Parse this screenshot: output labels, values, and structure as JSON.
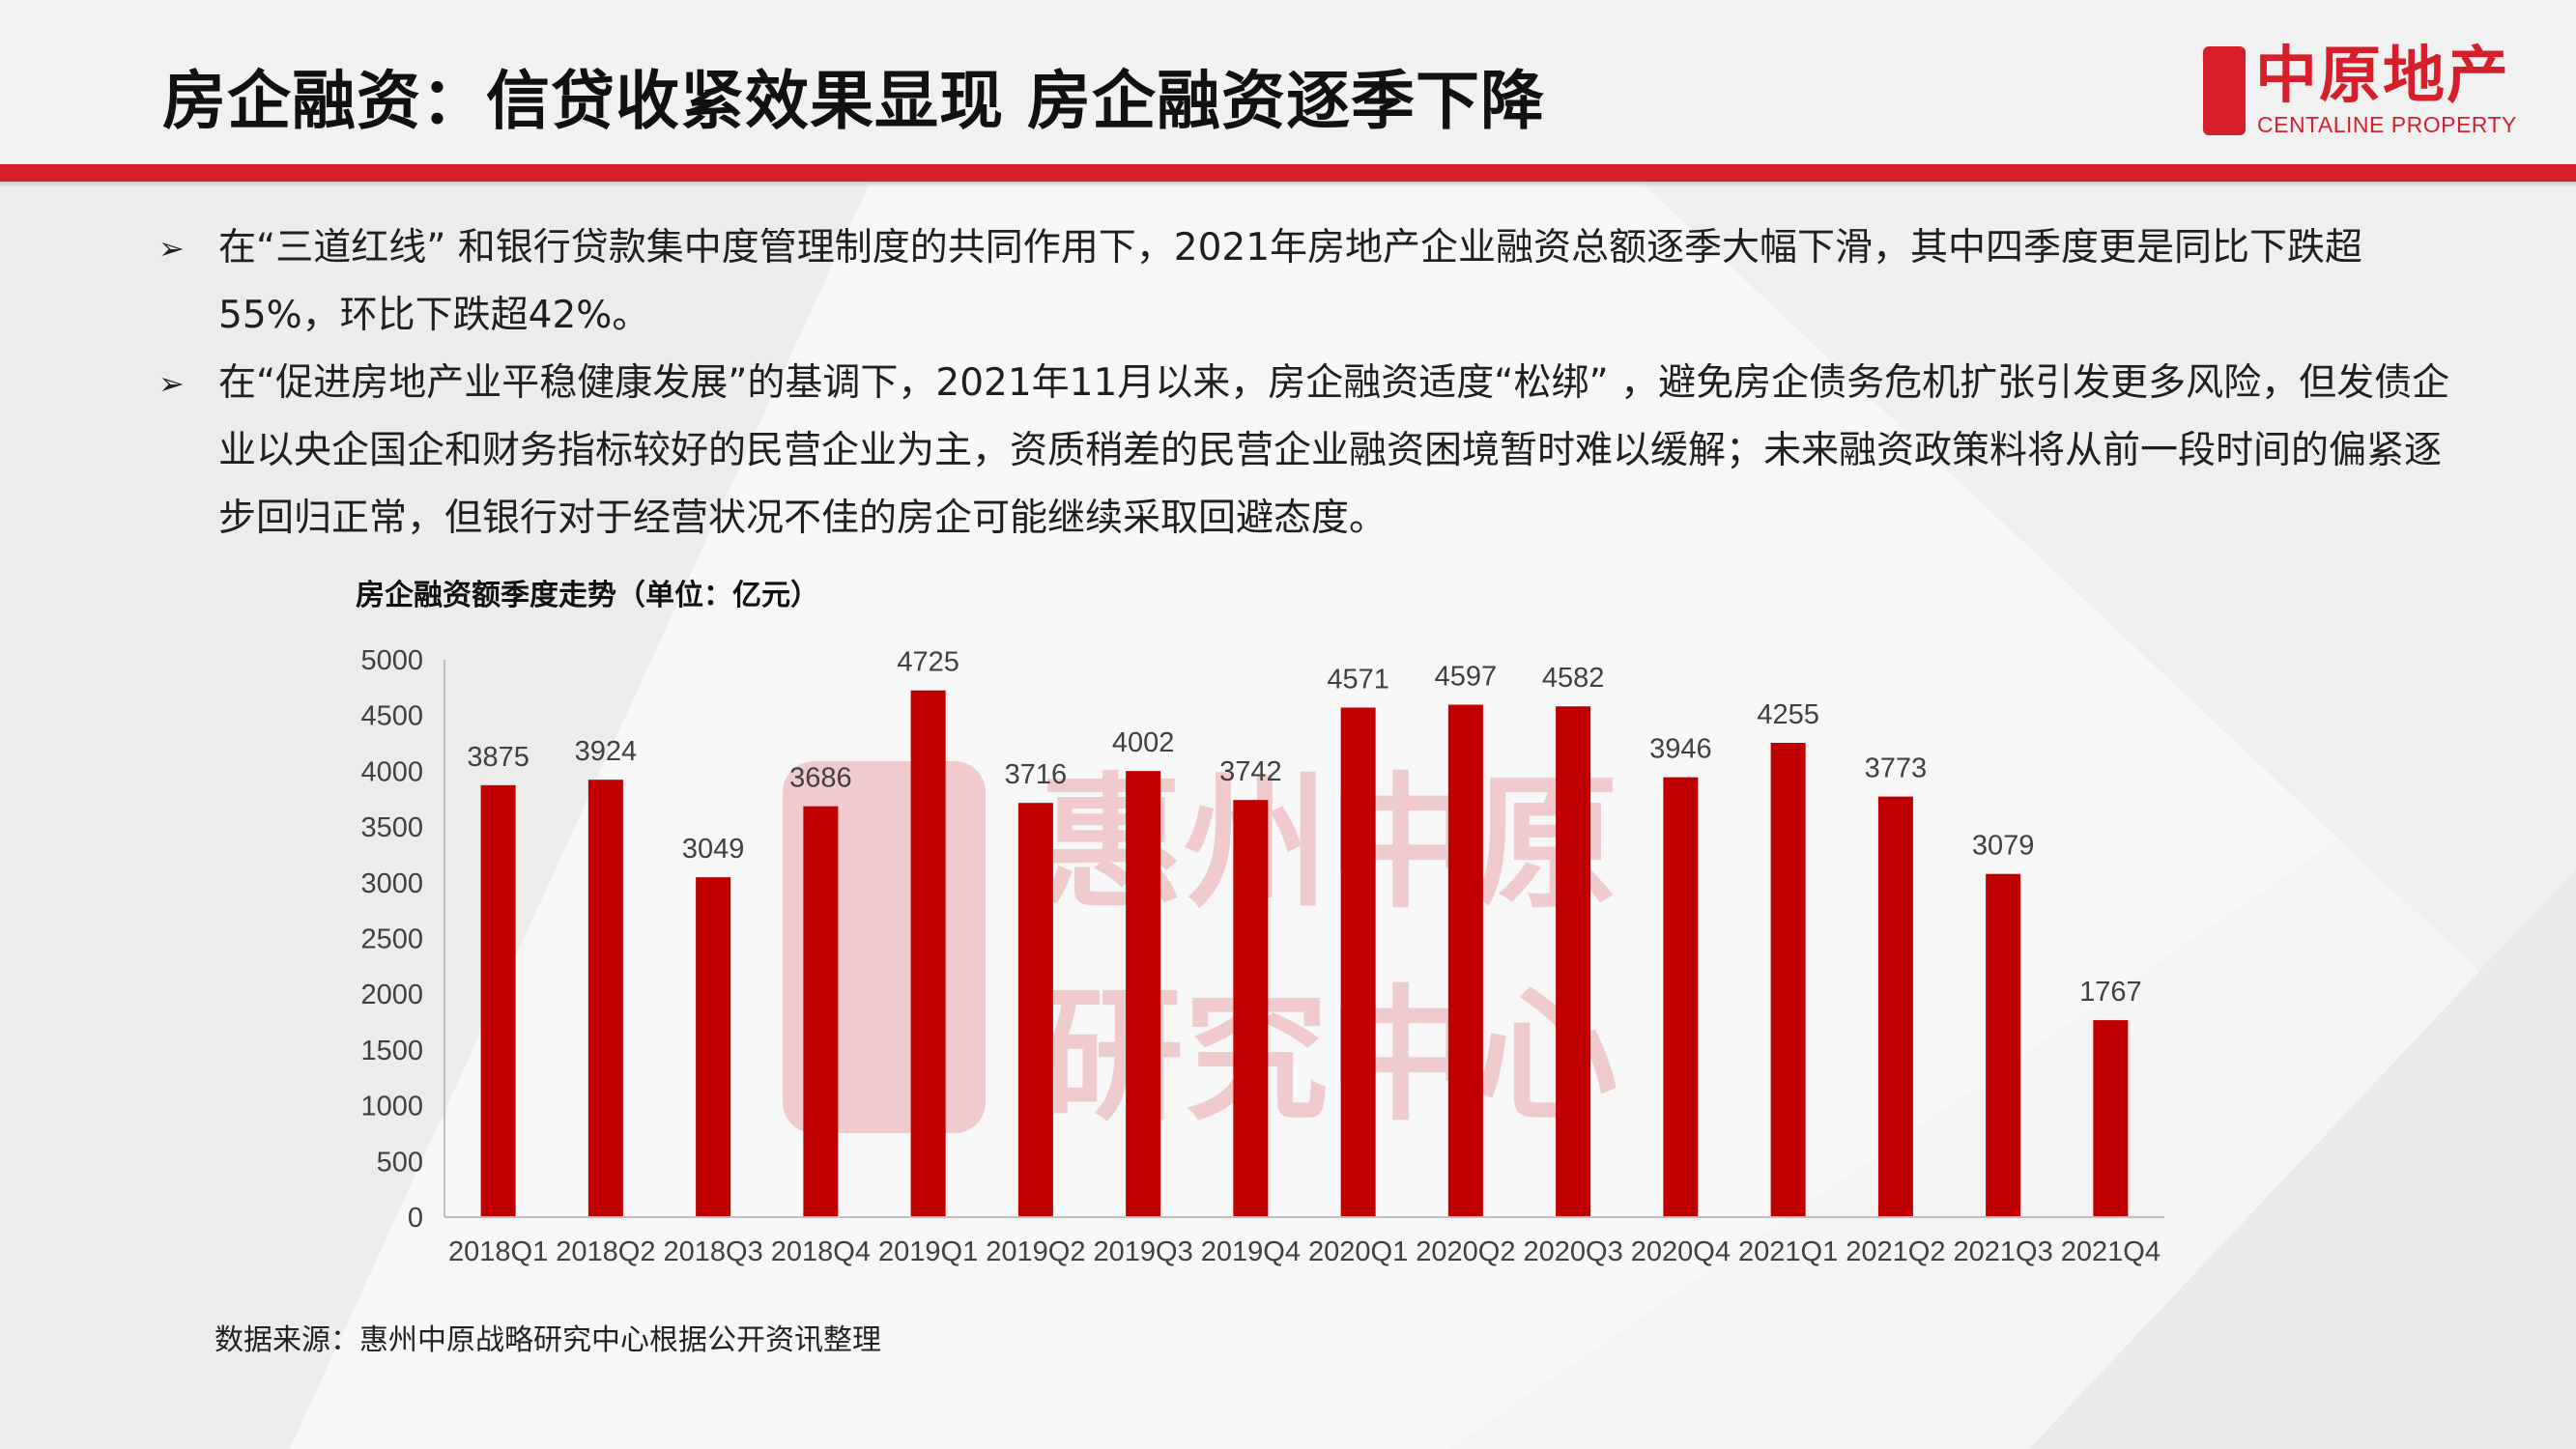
{
  "slide": {
    "title": "房企融资：信贷收紧效果显现  房企融资逐季下降",
    "logo": {
      "cn": "中原地产",
      "en": "CENTALINE PROPERTY",
      "seal_text": "中原"
    },
    "bullets": [
      {
        "marker": "➢",
        "text": "在“三道红线” 和银行贷款集中度管理制度的共同作用下，2021年房地产企业融资总额逐季大幅下滑，其中四季度更是同比下跌超55%，环比下跌超42%。"
      },
      {
        "marker": "➢",
        "text": "在“促进房地产业平稳健康发展”的基调下，2021年11月以来，房企融资适度“松绑” ，避免房企债务危机扩张引发更多风险，但发债企业以央企国企和财务指标较好的民营企业为主，资质稍差的民营企业融资困境暂时难以缓解；未来融资政策料将从前一段时间的偏紧逐步回归正常，但银行对于经营状况不佳的房企可能继续采取回避态度。"
      }
    ],
    "watermark": {
      "line1": "惠州中原",
      "line2": "研究中心"
    },
    "source": "数据来源：惠州中原战略研究中心根据公开资讯整理",
    "accent_color": "#d61f2b",
    "bar_color": "#c00000"
  },
  "chart_data": {
    "type": "bar",
    "title": "房企融资额季度走势（单位：亿元）",
    "xlabel": "",
    "ylabel": "",
    "categories": [
      "2018Q1",
      "2018Q2",
      "2018Q3",
      "2018Q4",
      "2019Q1",
      "2019Q2",
      "2019Q3",
      "2019Q4",
      "2020Q1",
      "2020Q2",
      "2020Q3",
      "2020Q4",
      "2021Q1",
      "2021Q2",
      "2021Q3",
      "2021Q4"
    ],
    "values": [
      3875,
      3924,
      3049,
      3686,
      4725,
      3716,
      4002,
      3742,
      4571,
      4597,
      4582,
      3946,
      4255,
      3773,
      3079,
      1767
    ],
    "ylim": [
      0,
      5000
    ],
    "yticks": [
      0,
      500,
      1000,
      1500,
      2000,
      2500,
      3000,
      3500,
      4000,
      4500,
      5000
    ],
    "grid": false,
    "legend": "none",
    "data_labels": true
  }
}
